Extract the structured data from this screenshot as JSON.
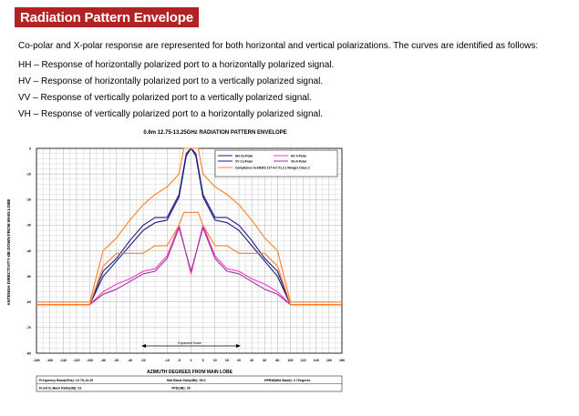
{
  "header": {
    "title": "Radiation Pattern Envelope"
  },
  "intro": "Co-polar and X-polar response are represented for both horizontal and vertical polarizations. The curves are identified as follows:",
  "definitions": [
    "HH – Response of horizontally polarized port to a horizontally polarized signal.",
    "HV – Response of horizontally polarized port to a vertically polarized signal.",
    "VV – Response of vertically polarized port to a vertically polarized signal.",
    "VH – Response of vertically polarized port to a horizontally polarized signal."
  ],
  "chart_data": {
    "type": "line",
    "title": "0.6m 12.75-13.25GHz  RADIATION PATTERN ENVELOPE",
    "xlabel": "AZIMUTH DEGREES FROM MAIN LOBE",
    "ylabel": "ANTENNA DIRECTIVITY-dB DOWN FROM MAIN LOBE",
    "xlim": [
      -180,
      180
    ],
    "ylim": [
      -80,
      0
    ],
    "grid": true,
    "legend_position": "top-right",
    "x_ticks": [
      "-180",
      "-160",
      "-140",
      "-120",
      "-100",
      "-80",
      "-60",
      "-40",
      "-20",
      "-10",
      "-5",
      "0",
      "5",
      "10",
      "15",
      "20",
      "40",
      "60",
      "80",
      "100",
      "120",
      "140",
      "160",
      "180"
    ],
    "y_ticks": [
      "0",
      "-10",
      "-20",
      "-30",
      "-40",
      "-50",
      "-60",
      "-70",
      "-80"
    ],
    "expanded_scale_label": "Expanded Scale",
    "series": [
      {
        "name": "HH Co-Polar",
        "color": "#1a1a80",
        "x": [
          -180,
          -100,
          -80,
          -60,
          -40,
          -20,
          -15,
          -10,
          -5,
          -2,
          0,
          2,
          5,
          10,
          15,
          20,
          40,
          60,
          80,
          100,
          180
        ],
        "y": [
          -61,
          -61,
          -48,
          -43,
          -36,
          -30,
          -27,
          -27,
          -18,
          -2,
          0,
          -2,
          -18,
          -27,
          -27,
          -30,
          -36,
          -43,
          -48,
          -61,
          -61
        ]
      },
      {
        "name": "VV Co-Polar",
        "color": "#1a1a80",
        "x": [
          -180,
          -100,
          -80,
          -60,
          -40,
          -20,
          -15,
          -10,
          -5,
          -2,
          0,
          2,
          5,
          10,
          15,
          20,
          40,
          60,
          80,
          100,
          180
        ],
        "y": [
          -61,
          -61,
          -50,
          -44,
          -38,
          -32,
          -29,
          -28,
          -19,
          -3,
          0,
          -3,
          -19,
          -28,
          -29,
          -32,
          -38,
          -44,
          -50,
          -61,
          -61
        ]
      },
      {
        "name": "HV X-Polar",
        "color": "#ff33cc",
        "x": [
          -180,
          -100,
          -80,
          -60,
          -40,
          -20,
          -15,
          -10,
          -5,
          0,
          5,
          10,
          15,
          20,
          40,
          60,
          80,
          100,
          180
        ],
        "y": [
          -61,
          -61,
          -56,
          -53,
          -51,
          -48,
          -47,
          -42,
          -30,
          -49,
          -30,
          -42,
          -47,
          -48,
          -51,
          -53,
          -56,
          -61,
          -61
        ]
      },
      {
        "name": "VH X-Polar",
        "color": "#993399",
        "x": [
          -180,
          -100,
          -80,
          -60,
          -40,
          -20,
          -15,
          -10,
          -5,
          0,
          5,
          10,
          15,
          20,
          40,
          60,
          80,
          100,
          180
        ],
        "y": [
          -61,
          -61,
          -57,
          -55,
          -52,
          -49,
          -48,
          -43,
          -31,
          -48,
          -31,
          -43,
          -48,
          -49,
          -52,
          -55,
          -57,
          -61,
          -61
        ]
      },
      {
        "name": "Compliance to EN302 217-4-2 V1.2.1 Range1 Class 2",
        "color": "#ff7f27",
        "x": [
          -180,
          -100,
          -80,
          -60,
          -40,
          -20,
          -15,
          -10,
          -5,
          -3,
          3,
          5,
          10,
          15,
          20,
          40,
          60,
          80,
          100,
          180
        ],
        "y": [
          -60,
          -60,
          -40,
          -35,
          -28,
          -22,
          -18,
          -15,
          -10,
          0,
          0,
          -10,
          -15,
          -18,
          -22,
          -28,
          -35,
          -40,
          -60,
          -60
        ]
      },
      {
        "name": "",
        "color": "#ff7f27",
        "x": [
          -180,
          -100,
          -80,
          -60,
          -40,
          -20,
          -15,
          -10,
          -5,
          -3,
          3,
          5,
          10,
          15,
          20,
          40,
          60,
          80,
          100,
          180
        ],
        "y": [
          -61,
          -61,
          -46,
          -41,
          -41,
          -41,
          -38,
          -38,
          -30,
          -25,
          -25,
          -30,
          -38,
          -38,
          -41,
          -41,
          -41,
          -46,
          -61,
          -61
        ]
      }
    ],
    "footer": {
      "frequency": "Frequency Band(GHz): 12.75-13.25",
      "mid_band_gain": "Mid Band Gain(dBi): 35.6",
      "hpbw": "HPBW(Mid Band): 2.70egrees",
      "front_to_back": "Front to Back Ratio(dB): 61",
      "xpd": "XPD(dB): 30"
    }
  }
}
